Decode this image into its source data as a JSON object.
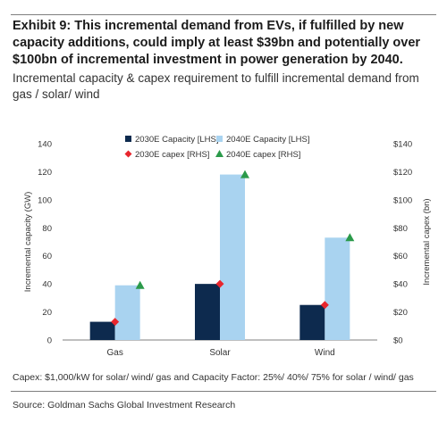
{
  "header": {
    "title": "Exhibit 9: This incremental demand from EVs, if fulfilled by new capacity additions, could imply at least $39bn and potentially over $100bn of incremental investment in power generation by 2040.",
    "subtitle": "Incremental capacity & capex requirement to fulfill incremental demand from gas / solar/ wind"
  },
  "footer": {
    "note": "Capex: $1,000/kW for solar/ wind/ gas and Capacity Factor: 25%/ 40%/ 75% for solar / wind/ gas",
    "source": "Source: Goldman Sachs Global Investment Research"
  },
  "colors": {
    "bar_2030": "#0d2a4e",
    "bar_2040": "#a9d3f0",
    "capex_2030": "#e8262d",
    "capex_2040": "#2b9a4a"
  },
  "chart_data": {
    "type": "bar",
    "categories": [
      "Gas",
      "Solar",
      "Wind"
    ],
    "ylabel": "Incremental capacity (GW)",
    "y2label": "Incremental capex (bn)",
    "ylim": [
      0,
      140
    ],
    "y2lim": [
      0,
      140
    ],
    "yticks": [
      0,
      20,
      40,
      60,
      80,
      100,
      120,
      140
    ],
    "y2ticks": [
      "$0",
      "$20",
      "$40",
      "$60",
      "$80",
      "$100",
      "$120",
      "$140"
    ],
    "grid": false,
    "legend_position": "top",
    "series": [
      {
        "name": "2030E Capacity [LHS]",
        "kind": "bar",
        "axis": "left",
        "values": [
          13,
          40,
          25
        ]
      },
      {
        "name": "2040E Capacity [LHS]",
        "kind": "bar",
        "axis": "left",
        "values": [
          39,
          118,
          73
        ]
      },
      {
        "name": "2030E capex [RHS]",
        "kind": "marker",
        "marker": "diamond",
        "axis": "right",
        "values": [
          13,
          40,
          25
        ]
      },
      {
        "name": "2040E capex [RHS]",
        "kind": "marker",
        "marker": "triangle",
        "axis": "right",
        "values": [
          39,
          118,
          73
        ]
      }
    ]
  }
}
